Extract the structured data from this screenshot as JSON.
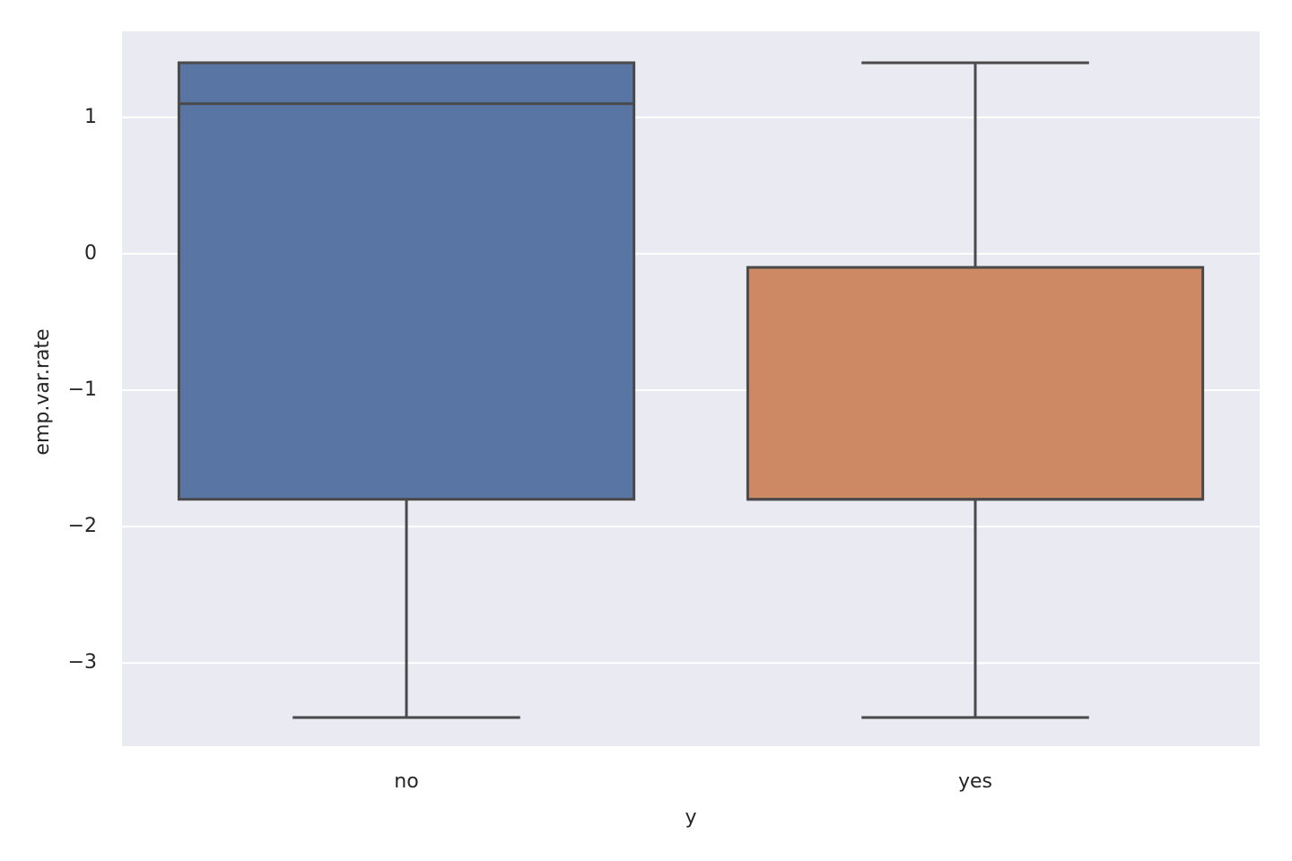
{
  "chart_data": {
    "type": "box",
    "x_label": "y",
    "y_label": "emp.var.rate",
    "categories": [
      "no",
      "yes"
    ],
    "colors": [
      "#5875a4",
      "#cc8963"
    ],
    "boxes": [
      {
        "low": -3.4,
        "q1": -1.8,
        "median": 1.1,
        "q3": 1.4,
        "high": 1.4
      },
      {
        "low": -3.4,
        "q1": -1.8,
        "median": -1.8,
        "q3": -0.1,
        "high": 1.4
      }
    ],
    "ylim": [
      -3.61,
      1.63
    ],
    "yticks": [
      {
        "value": -3,
        "label": "−3"
      },
      {
        "value": -2,
        "label": "−2"
      },
      {
        "value": -1,
        "label": "−1"
      },
      0,
      1
    ],
    "grid": true
  }
}
